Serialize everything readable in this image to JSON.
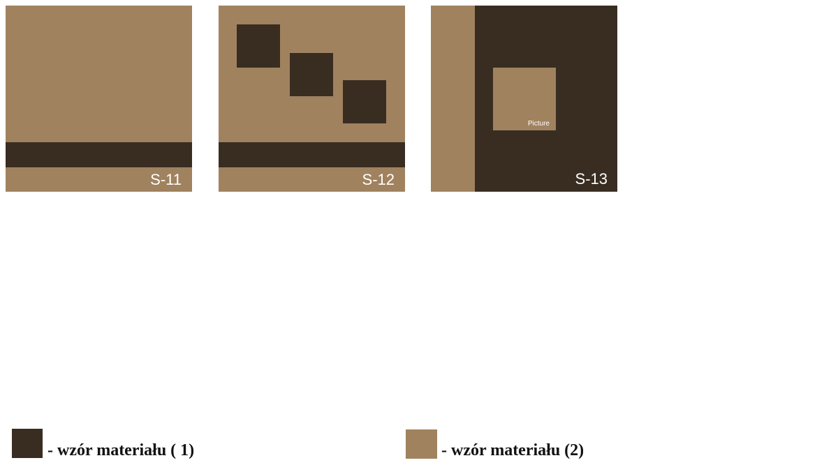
{
  "panels": [
    {
      "label": "S-11"
    },
    {
      "label": "S-12"
    },
    {
      "label": "S-13",
      "inner_label": "Picture"
    }
  ],
  "legend": [
    {
      "label": "- wzór materiału ( 1)"
    },
    {
      "label": "- wzór materiału (2)"
    }
  ]
}
